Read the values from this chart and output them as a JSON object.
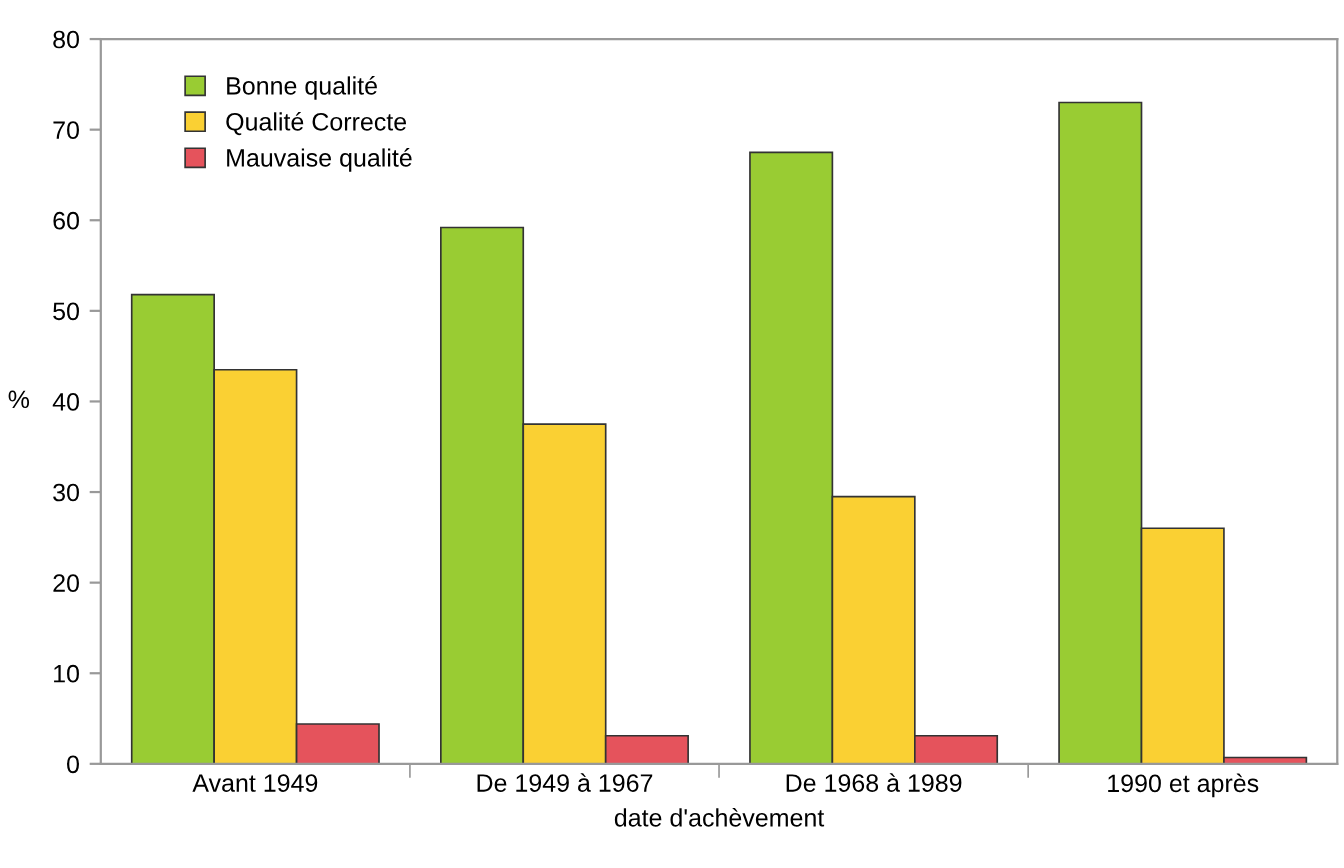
{
  "chart_data": {
    "type": "bar",
    "xlabel": "date d'achèvement",
    "ylabel": "%",
    "categories": [
      "Avant 1949",
      "De 1949 à 1967",
      "De 1968 à 1989",
      "1990 et après"
    ],
    "series": [
      {
        "name": "Bonne qualité",
        "color": "#99cc33",
        "values": [
          51.8,
          59.2,
          67.5,
          73.0
        ]
      },
      {
        "name": "Qualité Correcte",
        "color": "#fad033",
        "values": [
          43.5,
          37.5,
          29.5,
          26.0
        ]
      },
      {
        "name": "Mauvaise qualité",
        "color": "#e5535c",
        "values": [
          4.4,
          3.1,
          3.1,
          0.7
        ]
      }
    ],
    "ylim": [
      0,
      80
    ],
    "yticks": [
      0,
      10,
      20,
      30,
      40,
      50,
      60,
      70,
      80
    ],
    "grid": false,
    "legend": "top left"
  }
}
